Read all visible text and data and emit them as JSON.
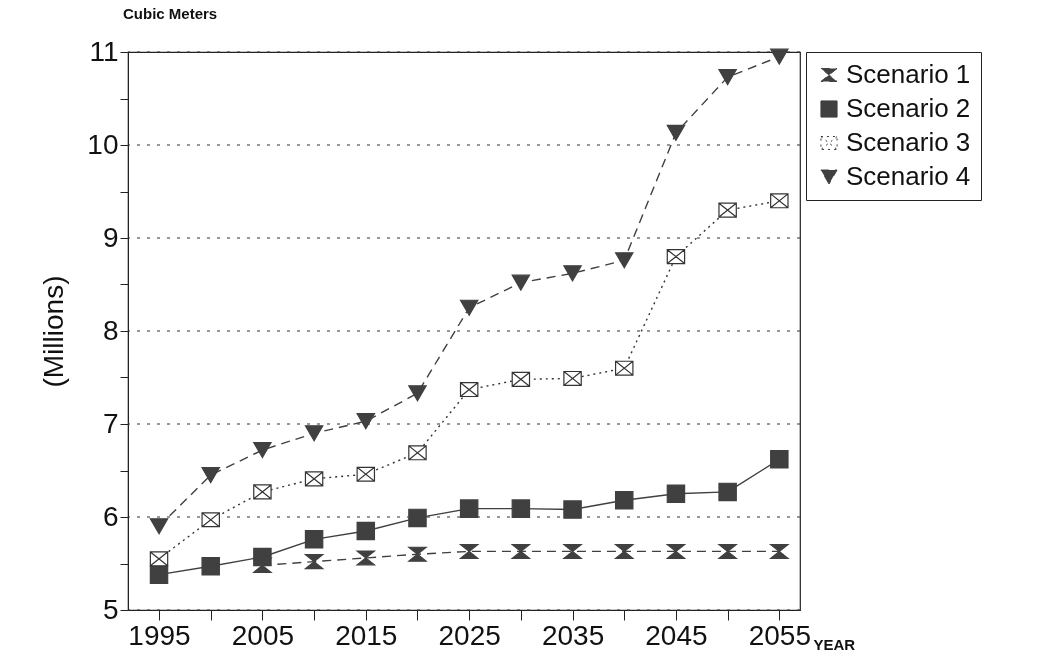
{
  "chart_data": {
    "type": "line",
    "title": "Cubic Meters",
    "xlabel": "YEAR",
    "ylabel": "(Millions)",
    "x": [
      1995,
      2000,
      2005,
      2010,
      2015,
      2020,
      2025,
      2030,
      2035,
      2040,
      2045,
      2050,
      2055
    ],
    "series": [
      {
        "name": "Scenario 1",
        "color": "#404040",
        "marker": "diamond",
        "line_style": "dashed",
        "values": [
          null,
          null,
          5.48,
          5.52,
          5.56,
          5.6,
          5.63,
          5.63,
          5.63,
          5.63,
          5.63,
          5.63,
          5.63
        ]
      },
      {
        "name": "Scenario 2",
        "color": "#404040",
        "marker": "square",
        "line_style": "solid",
        "values": [
          5.38,
          5.47,
          5.57,
          5.76,
          5.85,
          5.99,
          6.09,
          6.09,
          6.08,
          6.18,
          6.25,
          6.27,
          6.62
        ]
      },
      {
        "name": "Scenario 3",
        "color": "#333333",
        "marker": "cross",
        "line_style": "dotted",
        "values": [
          5.55,
          5.97,
          6.27,
          6.41,
          6.46,
          6.69,
          7.37,
          7.48,
          7.49,
          7.6,
          8.8,
          9.3,
          9.4
        ]
      },
      {
        "name": "Scenario 4",
        "color": "#404040",
        "marker": "triangle",
        "line_style": "dashed",
        "values": [
          5.9,
          6.45,
          6.72,
          6.9,
          7.03,
          7.33,
          8.25,
          8.52,
          8.62,
          8.76,
          10.13,
          10.73,
          10.95
        ]
      }
    ],
    "xlim": [
      1992,
      2057
    ],
    "xticks": [
      1995,
      {
        "value": 2000,
        "label": null
      },
      2005,
      {
        "value": 2010,
        "label": null
      },
      2015,
      {
        "value": 2020,
        "label": null
      },
      2025,
      {
        "value": 2030,
        "label": null
      },
      2035,
      {
        "value": 2040,
        "label": null
      },
      2045,
      {
        "value": 2050,
        "label": null
      },
      2055
    ],
    "ylim": [
      5,
      11
    ],
    "yticks": [
      5,
      {
        "value": 5.5,
        "label": null
      },
      6,
      {
        "value": 6.5,
        "label": null
      },
      7,
      {
        "value": 7.5,
        "label": null
      },
      8,
      {
        "value": 8.5,
        "label": null
      },
      9,
      {
        "value": 9.5,
        "label": null
      },
      10,
      {
        "value": 10.5,
        "label": null
      },
      11
    ],
    "grid": "y",
    "legend": "right"
  }
}
